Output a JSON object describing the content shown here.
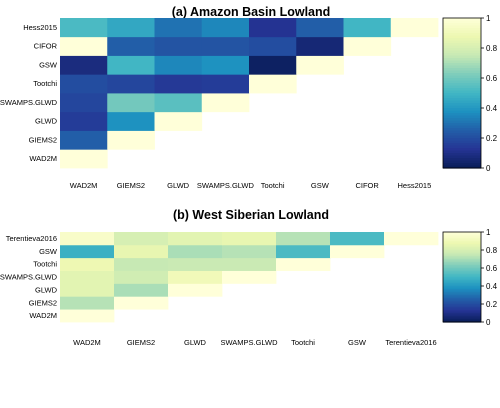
{
  "chart_data": [
    {
      "type": "heatmap",
      "title": "(a) Amazon Basin Lowland",
      "categories": [
        "WAD2M",
        "GIEMS2",
        "GLWD",
        "SWAMPS.GLWD",
        "Tootchi",
        "GSW",
        "CIFOR",
        "Hess2015"
      ],
      "colorbar": {
        "range": [
          0,
          1
        ],
        "ticks": [
          "0",
          "0.2",
          "0.4",
          "0.6",
          "0.8",
          "1"
        ],
        "colormap": "YlGnBu"
      },
      "matrix": [
        [
          1.0
        ],
        [
          0.25,
          1.0
        ],
        [
          0.15,
          0.38,
          1.0
        ],
        [
          0.18,
          0.6,
          0.55,
          1.0
        ],
        [
          0.2,
          0.18,
          0.14,
          0.15,
          1.0
        ],
        [
          0.08,
          0.5,
          0.35,
          0.38,
          0.02,
          1.0
        ],
        [
          1.0,
          0.25,
          0.22,
          0.22,
          0.2,
          0.06,
          1.0
        ],
        [
          0.52,
          0.45,
          0.3,
          0.35,
          0.12,
          0.25,
          0.5,
          1.0
        ]
      ]
    },
    {
      "type": "heatmap",
      "title": "(b) West Siberian Lowland",
      "categories": [
        "WAD2M",
        "GIEMS2",
        "GLWD",
        "SWAMPS.GLWD",
        "Tootchi",
        "GSW",
        "Terentieva2016"
      ],
      "colorbar": {
        "range": [
          0,
          1
        ],
        "ticks": [
          "0",
          "0.2",
          "0.4",
          "0.6",
          "0.8",
          "1"
        ],
        "colormap": "YlGnBu"
      },
      "matrix": [
        [
          1.0
        ],
        [
          0.72,
          1.0
        ],
        [
          0.84,
          0.7,
          1.0
        ],
        [
          0.84,
          0.78,
          0.9,
          1.0
        ],
        [
          0.88,
          0.75,
          0.76,
          0.76,
          1.0
        ],
        [
          0.48,
          0.86,
          0.7,
          0.72,
          0.52,
          1.0
        ],
        [
          0.95,
          0.8,
          0.84,
          0.86,
          0.72,
          0.52,
          1.0
        ]
      ]
    }
  ]
}
